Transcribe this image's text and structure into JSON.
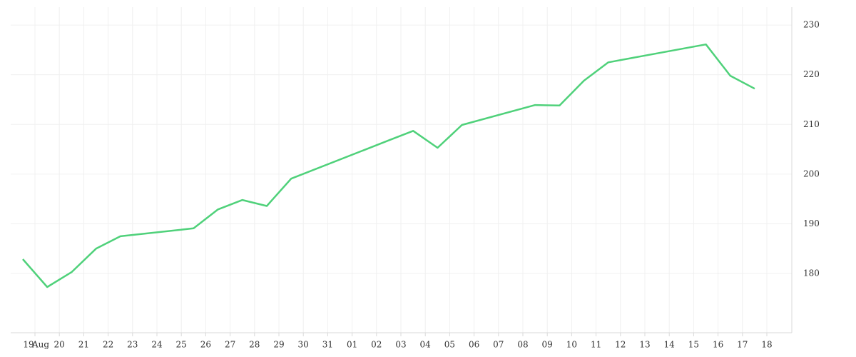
{
  "chart_data": {
    "type": "line",
    "categories": [
      "19",
      "20",
      "21",
      "22",
      "23",
      "24",
      "25",
      "26",
      "27",
      "28",
      "29",
      "30",
      "31",
      "01",
      "02",
      "03",
      "04",
      "05",
      "06",
      "07",
      "08",
      "09",
      "10",
      "11",
      "12",
      "13",
      "14",
      "15",
      "16",
      "17",
      "18"
    ],
    "month_label": "Aug",
    "x": [
      "19",
      "20",
      "21",
      "22",
      "23",
      "26",
      "27",
      "28",
      "29",
      "30",
      "03",
      "04",
      "05",
      "06",
      "09",
      "10",
      "11",
      "12",
      "13",
      "16",
      "17",
      "18"
    ],
    "values": [
      182.9,
      177.3,
      180.3,
      185.0,
      187.5,
      189.1,
      192.9,
      194.8,
      193.6,
      199.1,
      206.8,
      208.7,
      205.3,
      209.9,
      213.9,
      213.8,
      218.8,
      222.5,
      223.4,
      226.1,
      219.8,
      217.2
    ],
    "color": "#4fd17a",
    "ylim": [
      168.1,
      233.6
    ],
    "yticks": [
      180,
      190,
      200,
      210,
      220,
      230
    ],
    "grid": true
  }
}
